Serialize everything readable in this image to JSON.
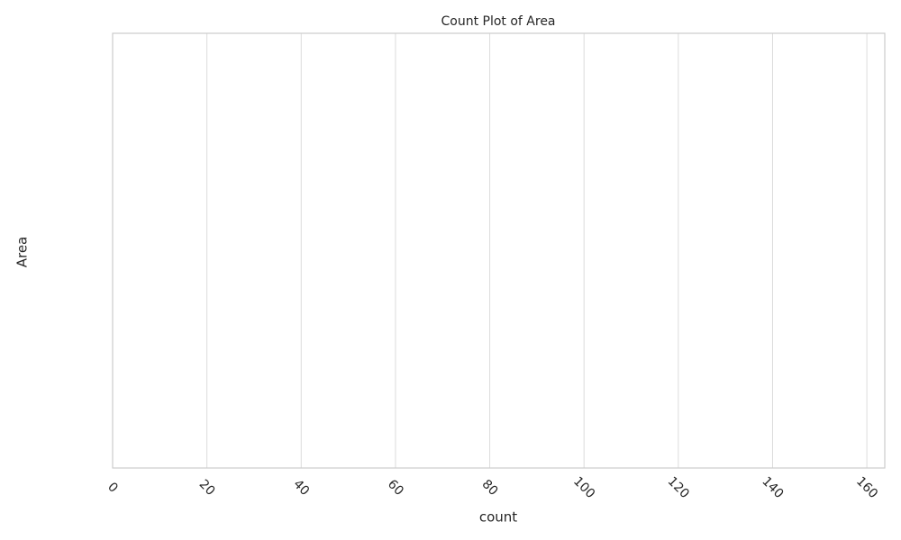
{
  "chart_data": {
    "type": "bar",
    "orientation": "horizontal",
    "title": "Count Plot of Area",
    "x_label": "count",
    "y_label": "Area",
    "categories": [],
    "values": [],
    "color": "#4c72b0",
    "xlim": [
      0,
      163.8
    ],
    "xticks": [
      0,
      20,
      40,
      60,
      80,
      100,
      120,
      140,
      160
    ],
    "grid": true
  }
}
